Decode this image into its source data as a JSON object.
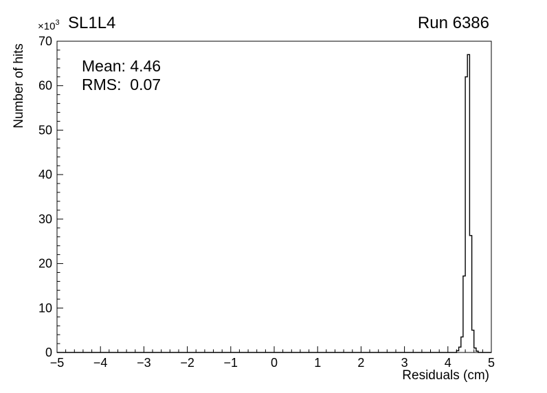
{
  "chart_data": {
    "type": "histogram",
    "title": "SL1L4",
    "run_label": "Run 6386",
    "stats": {
      "mean": "Mean: 4.46",
      "rms": "RMS:  0.07"
    },
    "mean_value": 4.46,
    "rms_value": 0.07,
    "xlabel": "Residuals (cm)",
    "ylabel": "Number of hits",
    "y_axis_exponent": {
      "base": "×10",
      "power": "3"
    },
    "xlim": [
      -5,
      5
    ],
    "ylim": [
      0,
      70
    ],
    "x_major_ticks": [
      -5,
      -4,
      -3,
      -2,
      -1,
      0,
      1,
      2,
      3,
      4,
      5
    ],
    "x_tick_labels": [
      "−5",
      "−4",
      "−3",
      "−2",
      "−1",
      "0",
      "1",
      "2",
      "3",
      "4",
      "5"
    ],
    "x_minor_step": 0.2,
    "y_major_ticks": [
      0,
      10,
      20,
      30,
      40,
      50,
      60,
      70
    ],
    "y_tick_labels": [
      "0",
      "10",
      "20",
      "30",
      "40",
      "50",
      "60",
      "70"
    ],
    "y_minor_step": 2,
    "y_unit_scale": 1000,
    "bins": {
      "start": 4.2,
      "width": 0.05,
      "values_in_thousands": [
        0.4,
        1.2,
        3.5,
        17.2,
        62,
        67,
        26.3,
        5,
        1,
        0.3
      ]
    },
    "line_color": "#000000",
    "background_color": "#ffffff"
  }
}
